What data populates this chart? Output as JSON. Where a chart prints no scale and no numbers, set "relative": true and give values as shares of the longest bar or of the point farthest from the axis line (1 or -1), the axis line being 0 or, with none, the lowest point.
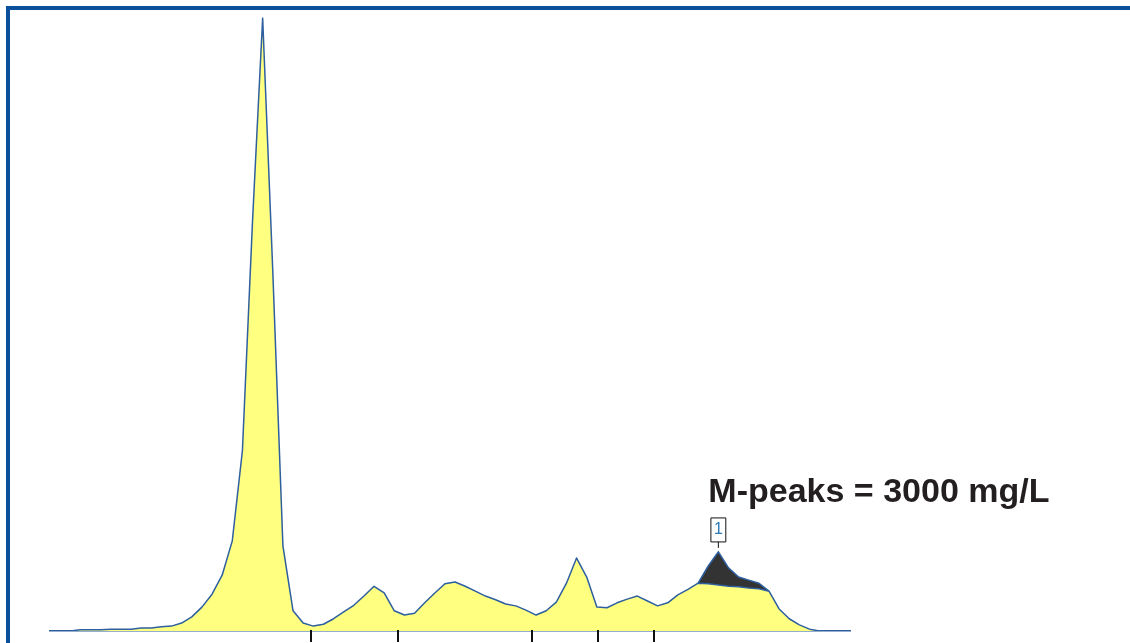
{
  "chart_data": {
    "type": "area",
    "relative": true,
    "stacked": true,
    "categories": [
      null,
      null,
      null,
      null,
      null,
      null,
      null,
      null,
      null,
      null,
      null,
      null,
      null,
      null,
      null,
      null,
      null,
      null,
      null,
      null,
      null,
      null,
      null,
      null,
      null,
      null,
      null,
      null,
      null,
      null,
      null,
      null,
      null,
      null,
      null,
      null,
      null,
      null,
      null,
      null,
      null,
      null,
      null,
      null,
      null,
      null,
      null,
      null,
      null,
      null,
      null,
      null,
      null,
      null,
      null,
      null,
      null,
      null,
      null,
      null,
      null,
      null,
      null,
      null,
      null,
      null,
      null,
      null,
      null,
      null,
      null,
      null,
      null,
      null,
      null,
      null,
      null,
      null,
      null,
      null
    ],
    "series": [
      {
        "type": "area",
        "color": "#ffff80",
        "values": [
          0,
          0,
          0,
          0.002,
          0.002,
          0.002,
          0.003,
          0.003,
          0.003,
          0.005,
          0.005,
          0.007,
          0.008,
          0.013,
          0.023,
          0.039,
          0.06,
          0.091,
          0.147,
          0.294,
          0.669,
          1,
          0.587,
          0.139,
          0.033,
          0.013,
          0.008,
          0.011,
          0.02,
          0.031,
          0.042,
          0.057,
          0.073,
          0.062,
          0.033,
          0.026,
          0.029,
          0.046,
          0.062,
          0.077,
          0.08,
          0.073,
          0.065,
          0.057,
          0.051,
          0.044,
          0.041,
          0.034,
          0.026,
          0.033,
          0.047,
          0.078,
          0.119,
          0.088,
          0.039,
          0.038,
          0.046,
          0.052,
          0.057,
          0.049,
          0.041,
          0.046,
          0.059,
          0.068,
          0.078,
          0.077,
          0.075,
          0.073,
          0.072,
          0.07,
          0.069,
          0.065,
          0.036,
          0.02,
          0.01,
          0.003,
          0,
          0,
          0,
          0
        ]
      },
      {
        "type": "area",
        "color": "#333333",
        "values": [
          null,
          null,
          null,
          null,
          null,
          null,
          null,
          null,
          null,
          null,
          null,
          null,
          null,
          null,
          null,
          null,
          null,
          null,
          null,
          null,
          null,
          null,
          null,
          null,
          null,
          null,
          null,
          null,
          null,
          null,
          null,
          null,
          null,
          null,
          null,
          null,
          null,
          null,
          null,
          null,
          null,
          null,
          null,
          null,
          null,
          null,
          null,
          null,
          null,
          null,
          null,
          null,
          null,
          null,
          null,
          null,
          null,
          null,
          null,
          null,
          null,
          null,
          null,
          null,
          0,
          0.029,
          0.054,
          0.03,
          0.016,
          0.013,
          0.009,
          0,
          null,
          null,
          null,
          null,
          null,
          null,
          null,
          null
        ]
      }
    ],
    "annotations": [
      "M-peaks = 3000 mg/L",
      "1"
    ]
  }
}
